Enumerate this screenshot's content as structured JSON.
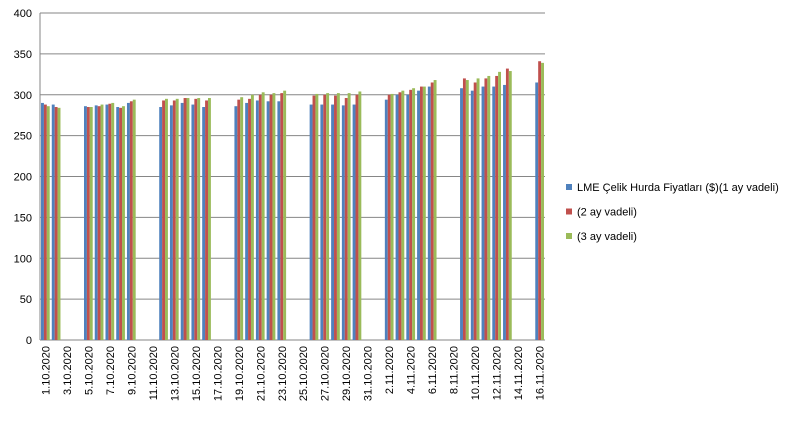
{
  "chart_data": {
    "type": "bar",
    "categories": [
      "1.10.2020",
      null,
      "3.10.2020",
      null,
      "5.10.2020",
      null,
      "7.10.2020",
      null,
      "9.10.2020",
      null,
      "11.10.2020",
      null,
      "13.10.2020",
      null,
      "15.10.2020",
      null,
      "17.10.2020",
      null,
      "19.10.2020",
      null,
      "21.10.2020",
      null,
      "23.10.2020",
      null,
      "25.10.2020",
      null,
      "27.10.2020",
      null,
      "29.10.2020",
      null,
      "31.10.2020",
      null,
      "2.11.2020",
      null,
      "4.11.2020",
      null,
      "6.11.2020",
      null,
      "8.11.2020",
      null,
      "10.11.2020",
      null,
      "12.11.2020",
      null,
      "14.11.2020",
      null,
      "16.11.2020"
    ],
    "series": [
      {
        "name": "LME Çelik Hurda Fiyatları ($)(1 ay vadeli)",
        "color": "#4f81bd",
        "values": [
          290,
          288,
          null,
          null,
          286,
          287,
          288,
          285,
          290,
          null,
          null,
          285,
          287,
          290,
          288,
          285,
          null,
          null,
          286,
          290,
          293,
          292,
          292,
          null,
          null,
          288,
          288,
          288,
          287,
          288,
          null,
          null,
          294,
          300,
          300,
          305,
          310,
          null,
          null,
          308,
          305,
          310,
          310,
          312,
          null,
          null,
          315
        ]
      },
      {
        "name": "(2 ay vadeli)",
        "color": "#c0504d",
        "values": [
          288,
          285,
          null,
          null,
          285,
          286,
          289,
          284,
          292,
          null,
          null,
          293,
          293,
          296,
          295,
          293,
          null,
          null,
          294,
          295,
          300,
          300,
          302,
          null,
          null,
          299,
          300,
          299,
          296,
          300,
          null,
          null,
          300,
          303,
          306,
          310,
          315,
          null,
          null,
          320,
          315,
          320,
          323,
          332,
          null,
          null,
          341
        ]
      },
      {
        "name": "(3 ay vadeli)",
        "color": "#9bbb59",
        "values": [
          286,
          284,
          null,
          null,
          285,
          288,
          290,
          286,
          294,
          null,
          null,
          295,
          295,
          296,
          296,
          296,
          null,
          null,
          297,
          300,
          303,
          302,
          305,
          null,
          null,
          301,
          302,
          302,
          302,
          304,
          null,
          null,
          301,
          305,
          308,
          310,
          318,
          null,
          null,
          318,
          320,
          323,
          328,
          329,
          null,
          null,
          339
        ]
      }
    ],
    "ylim": [
      0,
      400
    ],
    "yticks": [
      0,
      50,
      100,
      150,
      200,
      250,
      300,
      350,
      400
    ],
    "grid": true,
    "legend": "right"
  }
}
